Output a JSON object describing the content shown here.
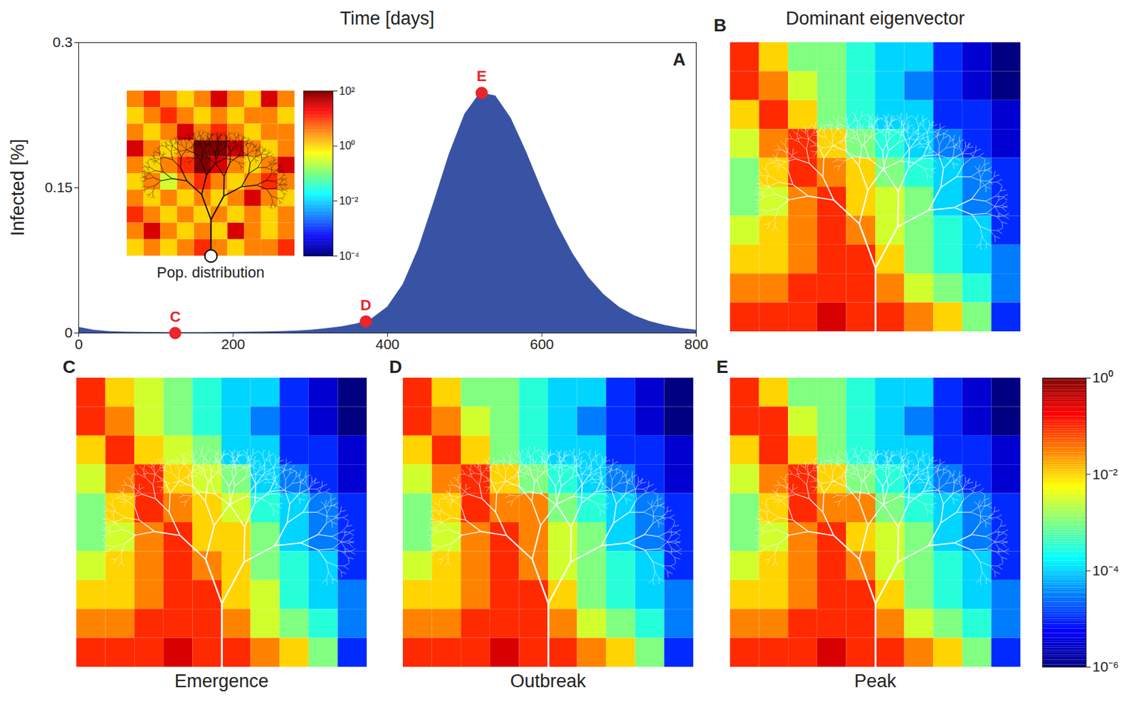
{
  "chart_data": [
    {
      "type": "area",
      "panel": "A",
      "x_label": "Time [days]",
      "y_label": "Infected [%]",
      "color": "#3953a4",
      "x": [
        0,
        20,
        40,
        60,
        80,
        100,
        120,
        140,
        160,
        180,
        200,
        220,
        240,
        260,
        280,
        300,
        320,
        340,
        360,
        380,
        400,
        420,
        440,
        460,
        480,
        500,
        520,
        540,
        560,
        580,
        600,
        620,
        640,
        660,
        680,
        700,
        720,
        740,
        760,
        780,
        800
      ],
      "values": [
        0.006,
        0.003,
        0.0015,
        0.001,
        0.0008,
        0.0007,
        0.0006,
        0.0006,
        0.0006,
        0.0007,
        0.0008,
        0.001,
        0.0012,
        0.0016,
        0.0022,
        0.003,
        0.0045,
        0.0065,
        0.0095,
        0.015,
        0.027,
        0.05,
        0.087,
        0.135,
        0.185,
        0.226,
        0.248,
        0.245,
        0.222,
        0.187,
        0.148,
        0.112,
        0.082,
        0.058,
        0.04,
        0.027,
        0.018,
        0.012,
        0.008,
        0.005,
        0.003
      ],
      "xlim": [
        0,
        800
      ],
      "ylim": [
        0,
        0.3
      ],
      "xticks": [
        0,
        200,
        400,
        600,
        800
      ],
      "yticks": [
        0,
        0.15,
        0.3
      ],
      "annotations": [
        {
          "label": "C",
          "x": 125,
          "y": 0,
          "color": "#e8262b"
        },
        {
          "label": "D",
          "x": 372,
          "y": 0.012,
          "color": "#e8262b"
        },
        {
          "label": "E",
          "x": 522,
          "y": 0.248,
          "color": "#e8262b"
        }
      ]
    },
    {
      "type": "heatmap",
      "title": "Pop. distribution",
      "log": true,
      "cells": [
        [
          3,
          10,
          3,
          1,
          3,
          30,
          3,
          1,
          30,
          3
        ],
        [
          1,
          3,
          10,
          3,
          1,
          3,
          1,
          3,
          3,
          1
        ],
        [
          3,
          1,
          3,
          30,
          3,
          10,
          3,
          1,
          3,
          3
        ],
        [
          30,
          3,
          1,
          3,
          100,
          100,
          30,
          3,
          1,
          3
        ],
        [
          3,
          1,
          3,
          10,
          100,
          30,
          3,
          1,
          3,
          30
        ],
        [
          1,
          3,
          0.3,
          3,
          10,
          3,
          1,
          3,
          10,
          3
        ],
        [
          3,
          1,
          3,
          1,
          3,
          1,
          3,
          30,
          3,
          1
        ],
        [
          10,
          3,
          1,
          3,
          1,
          3,
          1,
          3,
          1,
          3
        ],
        [
          3,
          30,
          3,
          1,
          3,
          1,
          30,
          3,
          1,
          3
        ],
        [
          1,
          3,
          1,
          3,
          10,
          3,
          1,
          3,
          3,
          10
        ]
      ],
      "colorbar": {
        "lim": [
          0.0001,
          100
        ],
        "ticks": [
          {
            "value": 100,
            "label": "10²"
          },
          {
            "value": 1,
            "label": "10⁰"
          },
          {
            "value": 0.01,
            "label": "10⁻²"
          },
          {
            "value": 0.0001,
            "label": "10⁻⁴"
          }
        ]
      }
    },
    {
      "type": "heatmap",
      "panel": "B",
      "title": "Dominant eigenvector",
      "log": true,
      "cells": [
        [
          0.1,
          0.01,
          0.001,
          0.001,
          0.0003,
          0.0001,
          0.0001,
          1e-05,
          3e-06,
          1e-06
        ],
        [
          0.1,
          0.03,
          0.003,
          0.001,
          0.0003,
          0.0001,
          3e-05,
          1e-05,
          3e-06,
          1e-06
        ],
        [
          0.01,
          0.1,
          0.01,
          0.001,
          0.0003,
          0.0001,
          0.0001,
          1e-05,
          1e-05,
          3e-06
        ],
        [
          0.003,
          0.03,
          0.1,
          0.01,
          0.001,
          0.0003,
          0.0001,
          3e-05,
          1e-05,
          3e-06
        ],
        [
          0.001,
          0.01,
          0.1,
          0.03,
          0.01,
          0.001,
          0.0003,
          0.0001,
          3e-05,
          1e-05
        ],
        [
          0.001,
          0.003,
          0.03,
          0.1,
          0.01,
          0.003,
          0.001,
          0.0001,
          3e-05,
          1e-05
        ],
        [
          0.003,
          0.01,
          0.03,
          0.1,
          0.03,
          0.003,
          0.001,
          0.0003,
          0.0001,
          1e-05
        ],
        [
          0.01,
          0.01,
          0.03,
          0.1,
          0.1,
          0.01,
          0.001,
          0.0003,
          0.0001,
          3e-05
        ],
        [
          0.03,
          0.03,
          0.1,
          0.1,
          0.1,
          0.03,
          0.003,
          0.001,
          0.0003,
          3e-05
        ],
        [
          0.1,
          0.1,
          0.1,
          0.3,
          0.1,
          0.1,
          0.03,
          0.01,
          0.001,
          1e-05
        ]
      ]
    },
    {
      "type": "heatmap",
      "panel": "C",
      "title": "Emergence",
      "log": true,
      "cells": [
        [
          0.1,
          0.01,
          0.003,
          0.001,
          0.0003,
          0.0001,
          0.0001,
          1e-05,
          3e-06,
          1e-06
        ],
        [
          0.1,
          0.03,
          0.003,
          0.001,
          0.0003,
          0.0001,
          3e-05,
          1e-05,
          3e-06,
          1e-06
        ],
        [
          0.01,
          0.1,
          0.01,
          0.003,
          0.001,
          0.0001,
          0.0001,
          1e-05,
          1e-05,
          3e-06
        ],
        [
          0.003,
          0.03,
          0.1,
          0.01,
          0.003,
          0.001,
          0.0001,
          3e-05,
          1e-05,
          3e-06
        ],
        [
          0.001,
          0.01,
          0.1,
          0.03,
          0.01,
          0.003,
          0.0003,
          0.0001,
          3e-05,
          1e-05
        ],
        [
          0.001,
          0.003,
          0.03,
          0.1,
          0.01,
          0.01,
          0.001,
          0.0001,
          3e-05,
          1e-05
        ],
        [
          0.003,
          0.01,
          0.03,
          0.1,
          0.03,
          0.01,
          0.001,
          0.0003,
          0.0001,
          1e-05
        ],
        [
          0.01,
          0.01,
          0.03,
          0.1,
          0.1,
          0.01,
          0.003,
          0.0003,
          0.0001,
          3e-05
        ],
        [
          0.03,
          0.03,
          0.1,
          0.1,
          0.1,
          0.03,
          0.003,
          0.001,
          0.0003,
          3e-05
        ],
        [
          0.1,
          0.1,
          0.1,
          0.3,
          0.1,
          0.1,
          0.03,
          0.01,
          0.001,
          1e-05
        ]
      ]
    },
    {
      "type": "heatmap",
      "panel": "D",
      "title": "Outbreak",
      "log": true,
      "cells": [
        [
          0.1,
          0.01,
          0.001,
          0.001,
          0.0003,
          0.0001,
          0.0001,
          1e-05,
          3e-06,
          1e-06
        ],
        [
          0.1,
          0.03,
          0.003,
          0.001,
          0.0003,
          0.0001,
          3e-05,
          1e-05,
          3e-06,
          1e-06
        ],
        [
          0.01,
          0.1,
          0.01,
          0.001,
          0.0003,
          0.0001,
          0.0001,
          1e-05,
          1e-05,
          3e-06
        ],
        [
          0.003,
          0.03,
          0.1,
          0.01,
          0.001,
          0.0003,
          0.0001,
          3e-05,
          1e-05,
          3e-06
        ],
        [
          0.001,
          0.01,
          0.1,
          0.03,
          0.03,
          0.001,
          0.0003,
          0.0001,
          3e-05,
          1e-05
        ],
        [
          0.001,
          0.003,
          0.03,
          0.1,
          0.03,
          0.003,
          0.001,
          0.0001,
          3e-05,
          1e-05
        ],
        [
          0.003,
          0.01,
          0.03,
          0.1,
          0.03,
          0.003,
          0.001,
          0.0003,
          0.0001,
          1e-05
        ],
        [
          0.01,
          0.01,
          0.03,
          0.1,
          0.1,
          0.01,
          0.001,
          0.0003,
          0.0001,
          3e-05
        ],
        [
          0.03,
          0.03,
          0.1,
          0.1,
          0.1,
          0.03,
          0.003,
          0.001,
          0.0003,
          3e-05
        ],
        [
          0.1,
          0.1,
          0.1,
          0.3,
          0.1,
          0.1,
          0.03,
          0.01,
          0.001,
          1e-05
        ]
      ]
    },
    {
      "type": "heatmap",
      "panel": "E",
      "title": "Peak",
      "log": true,
      "cells": [
        [
          0.1,
          0.01,
          0.001,
          0.001,
          0.0003,
          0.0001,
          0.0001,
          1e-05,
          3e-06,
          1e-06
        ],
        [
          0.1,
          0.1,
          0.003,
          0.001,
          0.0003,
          0.0001,
          3e-05,
          1e-05,
          3e-06,
          1e-06
        ],
        [
          0.01,
          0.1,
          0.01,
          0.001,
          0.0003,
          0.0001,
          0.0001,
          1e-05,
          1e-05,
          3e-06
        ],
        [
          0.003,
          0.03,
          0.1,
          0.01,
          0.001,
          0.0003,
          0.0001,
          3e-05,
          1e-05,
          3e-06
        ],
        [
          0.001,
          0.01,
          0.1,
          0.03,
          0.03,
          0.001,
          0.0003,
          0.0001,
          3e-05,
          1e-05
        ],
        [
          0.001,
          0.003,
          0.03,
          0.1,
          0.01,
          0.003,
          0.001,
          0.0001,
          3e-05,
          1e-05
        ],
        [
          0.003,
          0.01,
          0.03,
          0.1,
          0.03,
          0.003,
          0.001,
          0.0003,
          0.0001,
          1e-05
        ],
        [
          0.01,
          0.01,
          0.03,
          0.1,
          0.1,
          0.01,
          0.001,
          0.0003,
          0.0001,
          3e-05
        ],
        [
          0.03,
          0.03,
          0.1,
          0.1,
          0.1,
          0.03,
          0.003,
          0.001,
          0.0003,
          3e-05
        ],
        [
          0.1,
          0.1,
          0.1,
          0.3,
          0.1,
          0.1,
          0.03,
          0.01,
          0.001,
          1e-05
        ]
      ]
    },
    {
      "type": "colorbar",
      "log": true,
      "lim": [
        1e-06,
        1
      ],
      "ticks": [
        {
          "value": 1,
          "label": "10⁰"
        },
        {
          "value": 0.01,
          "label": "10⁻²"
        },
        {
          "value": 0.0001,
          "label": "10⁻⁴"
        },
        {
          "value": 1e-06,
          "label": "10⁻⁶"
        }
      ]
    }
  ]
}
